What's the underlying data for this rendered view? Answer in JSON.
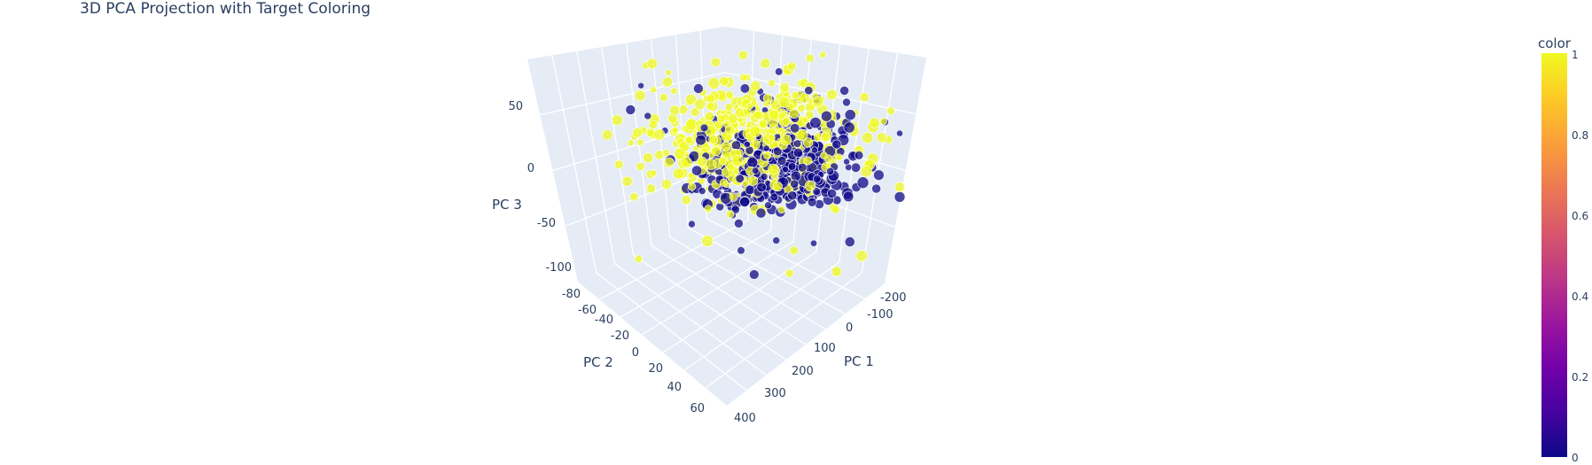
{
  "chart_data": {
    "type": "scatter",
    "title": "3D PCA Projection with Target Coloring",
    "xlabel": "PC 1",
    "ylabel": "PC 2",
    "zlabel": "PC 3",
    "x_ticks": [
      "-200",
      "-100",
      "0",
      "100",
      "200",
      "300",
      "400"
    ],
    "y_ticks": [
      "-80",
      "-60",
      "-40",
      "-20",
      "0",
      "20",
      "40",
      "60"
    ],
    "z_ticks": [
      "50",
      "0",
      "-50",
      "-100"
    ],
    "colorbar": {
      "title": "color",
      "range": [
        0,
        1
      ],
      "ticks": [
        "1",
        "0.8",
        "0.6",
        "0.4",
        "0.2",
        "0"
      ],
      "colorscale": [
        "#0d0887",
        "#46039f",
        "#7201a8",
        "#9c179e",
        "#bd3786",
        "#d8576b",
        "#ed7953",
        "#fb9f3a",
        "#fdca26",
        "#f0f921"
      ]
    },
    "colors": {
      "class0": "#0d0887",
      "class1": "#f0f921",
      "pane": "#e5ecf6",
      "grid": "#ffffff"
    },
    "point_count": 1000
  }
}
